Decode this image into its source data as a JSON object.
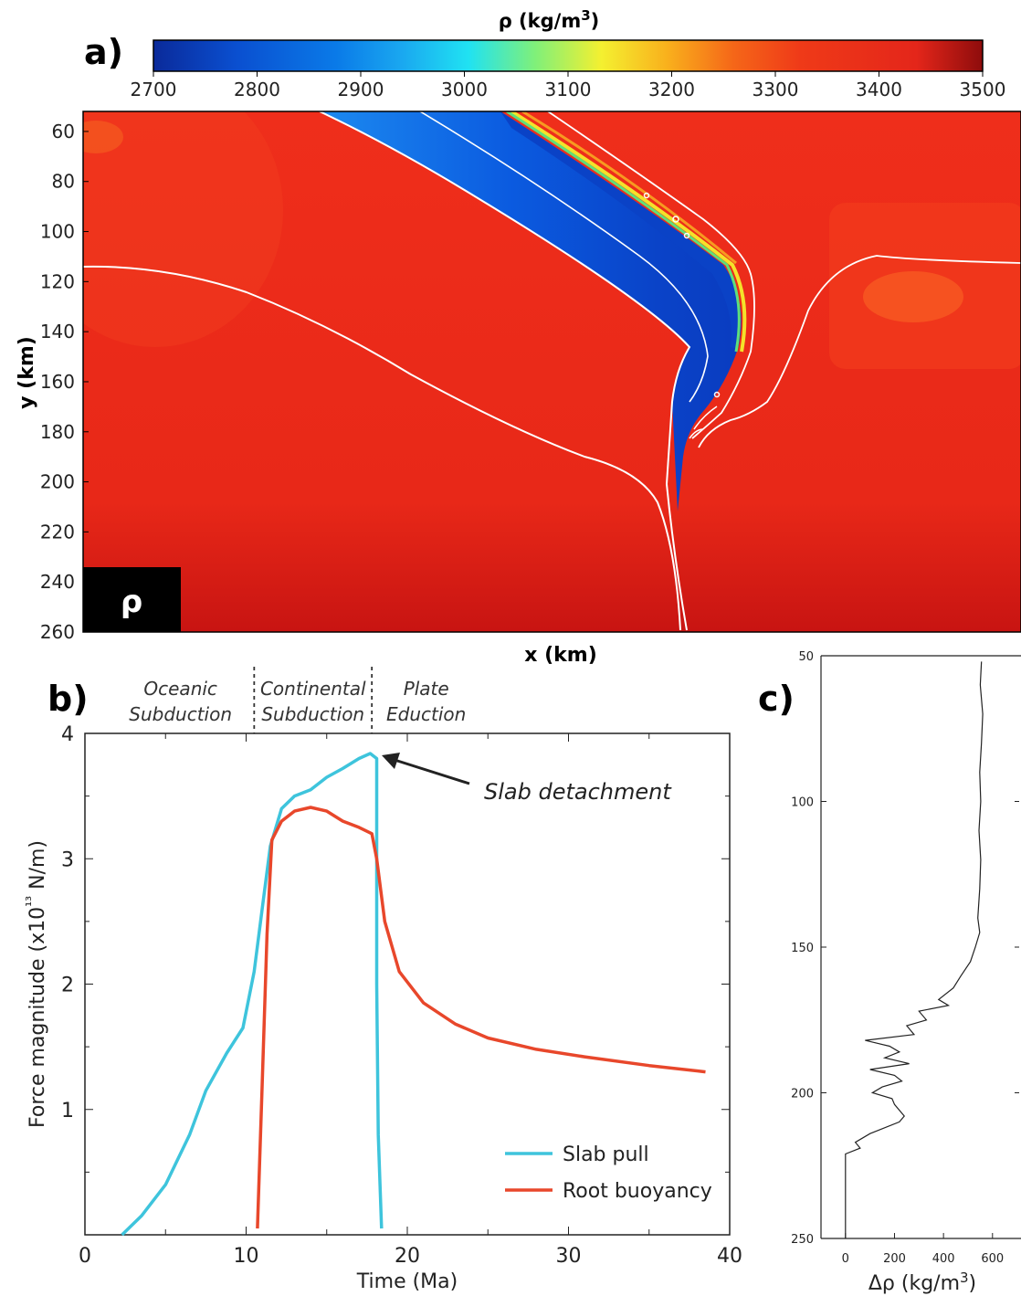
{
  "panels": {
    "a": {
      "label": "a)",
      "colorbar": {
        "title": "ρ (kg/m3)",
        "min": 2700,
        "max": 3500,
        "ticks": [
          "2700",
          "2800",
          "2900",
          "3000",
          "3100",
          "3200",
          "3300",
          "3400",
          "3500"
        ]
      },
      "ylabel": "y (km)",
      "xlabel": "x (km)",
      "yticks": [
        "60",
        "80",
        "100",
        "120",
        "140",
        "160",
        "180",
        "200",
        "220",
        "240",
        "260"
      ],
      "yrange": [
        52,
        260
      ],
      "field_label": "ρ",
      "background_color": "#ec2b1a"
    },
    "b": {
      "label": "b)",
      "phases": [
        "Oceanic Subduction",
        "Continental Subduction",
        "Plate Eduction"
      ],
      "phase_boundaries": [
        10.5,
        17.8
      ],
      "annotation": "Slab detachment"
    },
    "c": {
      "label": "c)"
    }
  },
  "chart_data": [
    {
      "type": "heatmap",
      "title": "",
      "xlabel": "x (km)",
      "ylabel": "y (km)",
      "ylim": [
        52,
        260
      ],
      "colorbar_label": "ρ (kg/m3)",
      "colorbar_range": [
        2700,
        3500
      ],
      "colorbar_ticks": [
        2700,
        2800,
        2900,
        3000,
        3100,
        3200,
        3300,
        3400,
        3500
      ],
      "y_ticks": [
        60,
        80,
        100,
        120,
        140,
        160,
        180,
        200,
        220,
        240,
        260
      ]
    },
    {
      "type": "line",
      "xlabel": "Time (Ma)",
      "ylabel": "Force magnitude (x10¹³ N/m)",
      "xlim": [
        0,
        40
      ],
      "ylim": [
        0,
        4
      ],
      "x_ticks": [
        0,
        10,
        20,
        30,
        40
      ],
      "y_ticks": [
        1,
        2,
        3,
        4
      ],
      "series": [
        {
          "name": "Slab pull",
          "color": "#3ec4dc",
          "points": [
            [
              2.3,
              0.0
            ],
            [
              3.5,
              0.15
            ],
            [
              5.0,
              0.4
            ],
            [
              6.5,
              0.8
            ],
            [
              7.5,
              1.15
            ],
            [
              8.8,
              1.45
            ],
            [
              9.8,
              1.65
            ],
            [
              10.5,
              2.1
            ],
            [
              11.0,
              2.6
            ],
            [
              11.5,
              3.1
            ],
            [
              12.2,
              3.4
            ],
            [
              13.0,
              3.5
            ],
            [
              14.0,
              3.55
            ],
            [
              15.0,
              3.65
            ],
            [
              16.0,
              3.72
            ],
            [
              17.0,
              3.8
            ],
            [
              17.7,
              3.84
            ],
            [
              18.1,
              3.8
            ],
            [
              18.1,
              2.0
            ],
            [
              18.2,
              0.8
            ],
            [
              18.4,
              0.05
            ]
          ]
        },
        {
          "name": "Root buoyancy",
          "color": "#e8472b",
          "points": [
            [
              10.7,
              0.05
            ],
            [
              11.0,
              1.2
            ],
            [
              11.3,
              2.4
            ],
            [
              11.6,
              3.15
            ],
            [
              12.2,
              3.3
            ],
            [
              13.0,
              3.38
            ],
            [
              14.0,
              3.41
            ],
            [
              15.0,
              3.38
            ],
            [
              16.0,
              3.3
            ],
            [
              17.0,
              3.25
            ],
            [
              17.8,
              3.2
            ],
            [
              18.1,
              3.0
            ],
            [
              18.6,
              2.5
            ],
            [
              19.5,
              2.1
            ],
            [
              21.0,
              1.85
            ],
            [
              23.0,
              1.68
            ],
            [
              25.0,
              1.57
            ],
            [
              28.0,
              1.48
            ],
            [
              31.0,
              1.42
            ],
            [
              35.0,
              1.35
            ],
            [
              38.5,
              1.3
            ]
          ]
        }
      ],
      "legend": "bottom-right"
    },
    {
      "type": "line",
      "xlabel": "Δρ (kg/m3)",
      "ylabel": "",
      "xlim": [
        -100,
        700
      ],
      "ylim": [
        250,
        50
      ],
      "x_ticks": [
        0,
        200,
        400,
        600
      ],
      "y_ticks": [
        50,
        100,
        150,
        200,
        250
      ],
      "series": [
        {
          "color": "#222222",
          "points": [
            [
              555,
              52
            ],
            [
              550,
              60
            ],
            [
              560,
              70
            ],
            [
              555,
              80
            ],
            [
              548,
              90
            ],
            [
              552,
              100
            ],
            [
              545,
              110
            ],
            [
              552,
              120
            ],
            [
              548,
              130
            ],
            [
              540,
              140
            ],
            [
              548,
              145
            ],
            [
              530,
              150
            ],
            [
              510,
              155
            ],
            [
              470,
              160
            ],
            [
              440,
              164
            ],
            [
              380,
              168
            ],
            [
              420,
              170
            ],
            [
              300,
              172
            ],
            [
              330,
              175
            ],
            [
              250,
              177
            ],
            [
              280,
              180
            ],
            [
              80,
              182
            ],
            [
              180,
              184
            ],
            [
              220,
              186
            ],
            [
              160,
              188
            ],
            [
              260,
              190
            ],
            [
              100,
              192
            ],
            [
              200,
              194
            ],
            [
              230,
              196
            ],
            [
              150,
              198
            ],
            [
              110,
              200
            ],
            [
              190,
              202
            ],
            [
              200,
              204
            ],
            [
              240,
              208
            ],
            [
              220,
              210
            ],
            [
              100,
              214
            ],
            [
              40,
              217
            ],
            [
              60,
              219
            ],
            [
              0,
              221
            ],
            [
              0,
              230
            ],
            [
              0,
              240
            ],
            [
              0,
              250
            ]
          ]
        }
      ]
    }
  ]
}
